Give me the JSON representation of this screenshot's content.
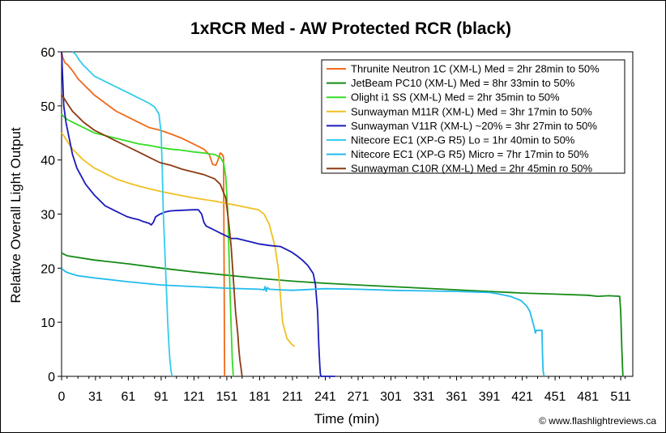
{
  "chart_data": {
    "type": "line",
    "title": "1xRCR Med - AW Protected RCR (black)",
    "xlabel": "Time (min)",
    "ylabel": "Relative Overall Light Output",
    "xlim": [
      0,
      522
    ],
    "ylim": [
      0,
      60
    ],
    "xticks": [
      0,
      31,
      61,
      91,
      121,
      151,
      181,
      211,
      241,
      271,
      301,
      331,
      361,
      391,
      421,
      451,
      481,
      511
    ],
    "yticks": [
      0,
      10,
      20,
      30,
      40,
      50,
      60
    ],
    "grid": false,
    "legend_position": "top-right",
    "credit": "© www.flashlightreviews.ca",
    "series": [
      {
        "name": "Thrunite Neutron 1C (XM-L) Med = 2hr 28min to 50%",
        "color": "#f06a1a",
        "x": [
          0,
          1,
          3,
          6,
          10,
          15,
          20,
          25,
          30,
          40,
          50,
          60,
          70,
          80,
          90,
          100,
          110,
          120,
          130,
          135,
          138,
          141,
          143,
          145,
          147,
          148,
          148.5,
          149
        ],
        "y": [
          60,
          59,
          58,
          57.5,
          56.5,
          55,
          54,
          53,
          52,
          50.5,
          49,
          48,
          47,
          46,
          45.5,
          44.8,
          44,
          43,
          42,
          41,
          39.2,
          39,
          40,
          41.3,
          41,
          40.5,
          20,
          0
        ]
      },
      {
        "name": "JetBeam PC10 (XM-L) Med = 8hr 33min to 50%",
        "color": "#158a15",
        "x": [
          0,
          5,
          30,
          61,
          91,
          121,
          151,
          181,
          211,
          241,
          271,
          301,
          331,
          361,
          391,
          421,
          451,
          481,
          490,
          500,
          510,
          511,
          512,
          513
        ],
        "y": [
          22.8,
          22.3,
          21.5,
          20.8,
          20,
          19.3,
          18.7,
          18.1,
          17.6,
          17.2,
          16.9,
          16.6,
          16.3,
          16,
          15.7,
          15.4,
          15.2,
          15,
          14.8,
          14.9,
          14.8,
          12,
          5,
          0
        ]
      },
      {
        "name": "Olight i1 SS (XM-L) Med = 2hr 35min to 50%",
        "color": "#33dd22",
        "x": [
          0,
          2,
          5,
          10,
          20,
          30,
          40,
          50,
          60,
          70,
          80,
          90,
          100,
          110,
          120,
          130,
          140,
          145,
          148,
          150,
          152,
          154,
          156,
          157
        ],
        "y": [
          48.5,
          48,
          47.5,
          47,
          46,
          45,
          44.5,
          44,
          43.5,
          43,
          42.7,
          42.3,
          42,
          41.8,
          41.5,
          41.3,
          41,
          40.5,
          39.5,
          37,
          30,
          15,
          3,
          0
        ]
      },
      {
        "name": "Sunwayman M11R (XM-L) Med = 3hr 17min to 50%",
        "color": "#f0c020",
        "x": [
          0,
          2,
          5,
          10,
          20,
          30,
          40,
          50,
          60,
          70,
          80,
          90,
          100,
          110,
          120,
          130,
          140,
          150,
          160,
          170,
          180,
          185,
          190,
          195,
          198,
          200,
          202,
          204,
          206,
          210,
          213
        ],
        "y": [
          45,
          44.5,
          43.5,
          42,
          40,
          38.5,
          37.5,
          36.5,
          35.8,
          35.2,
          34.7,
          34.2,
          33.8,
          33.4,
          33,
          32.7,
          32.4,
          32,
          31.6,
          31.2,
          30.8,
          30,
          28,
          24,
          20,
          15,
          10,
          8.5,
          7,
          6,
          5.5
        ]
      },
      {
        "name": "Sunwayman V11R (XM-L) ~20% = 3hr 27min to 50%",
        "color": "#1a1abb",
        "x": [
          0,
          1,
          2,
          4,
          6,
          8,
          10,
          14,
          18,
          22,
          26,
          30,
          35,
          40,
          45,
          50,
          55,
          60,
          65,
          70,
          75,
          80,
          82,
          84,
          86,
          90,
          95,
          100,
          110,
          120,
          125,
          128,
          130,
          132,
          135,
          140,
          145,
          150,
          155,
          160,
          170,
          180,
          190,
          200,
          205,
          210,
          215,
          220,
          225,
          230,
          232,
          234,
          235,
          236,
          236.5,
          237,
          250
        ],
        "y": [
          60,
          55,
          50,
          47,
          45,
          43,
          41,
          38.5,
          37,
          35.5,
          34.5,
          33.5,
          32.5,
          31.5,
          31,
          30.5,
          30,
          29.5,
          29.2,
          29,
          28.6,
          28.3,
          28,
          28.5,
          29.5,
          30,
          30.4,
          30.6,
          30.7,
          30.8,
          30.8,
          30,
          28.5,
          27.8,
          27.5,
          27,
          26.5,
          26,
          25.5,
          25.5,
          25,
          24.5,
          24.2,
          24,
          23.5,
          23,
          22.3,
          21.5,
          20.5,
          19,
          17,
          12,
          6,
          2,
          0.5,
          0,
          0
        ]
      },
      {
        "name": "Nitecore EC1 (XP-G R5) Lo = 1hr 40min to 50%",
        "color": "#33ccee",
        "x": [
          10,
          13,
          16,
          20,
          25,
          30,
          40,
          50,
          60,
          70,
          80,
          85,
          89,
          91,
          92,
          93,
          94,
          95,
          96,
          97,
          98,
          99,
          100,
          101
        ],
        "y": [
          60,
          59.5,
          58.5,
          57.5,
          56.5,
          55.5,
          54.5,
          53.5,
          52.5,
          51.5,
          50.5,
          49.8,
          48.5,
          45,
          38,
          30,
          25,
          20,
          15,
          10,
          6,
          3,
          1,
          0
        ]
      },
      {
        "name": "Nitecore EC1 (XP-G R5) Micro = 7hr 17min to 50%",
        "color": "#22bbee",
        "x": [
          0,
          1,
          2,
          4,
          8,
          15,
          30,
          60,
          91,
          121,
          151,
          181,
          185,
          186,
          187,
          188,
          190,
          200,
          211,
          241,
          271,
          301,
          331,
          361,
          391,
          400,
          410,
          420,
          425,
          428,
          430,
          432,
          433,
          434,
          436,
          438,
          439,
          439.5,
          440,
          441
        ],
        "y": [
          20,
          19.8,
          19.6,
          19.3,
          19,
          18.6,
          18.2,
          17.5,
          16.9,
          16.6,
          16.3,
          16.1,
          16,
          16.6,
          15.7,
          16.4,
          16.1,
          16,
          15.9,
          16.2,
          16.1,
          15.9,
          15.8,
          15.7,
          15.5,
          15.2,
          14.8,
          14,
          13,
          12,
          10.5,
          9,
          8,
          8.5,
          8.5,
          8.5,
          8.5,
          4,
          1,
          0
        ]
      },
      {
        "name": "Sunwayman C10R (XM-L) Med = 2hr 45min ro 50%",
        "color": "#8b3a12",
        "x": [
          0,
          2,
          5,
          10,
          15,
          20,
          30,
          40,
          50,
          60,
          70,
          80,
          90,
          100,
          110,
          120,
          130,
          140,
          145,
          150,
          153,
          155,
          157,
          159,
          161,
          162,
          163,
          164,
          165
        ],
        "y": [
          52,
          51.5,
          50.5,
          49,
          48,
          47,
          45.5,
          44.5,
          43.5,
          42.5,
          41.5,
          40.5,
          39.5,
          39,
          38.3,
          37.8,
          37.3,
          36.5,
          35.5,
          33,
          28,
          24,
          18,
          12,
          8,
          5,
          3,
          1.5,
          0
        ]
      }
    ]
  }
}
